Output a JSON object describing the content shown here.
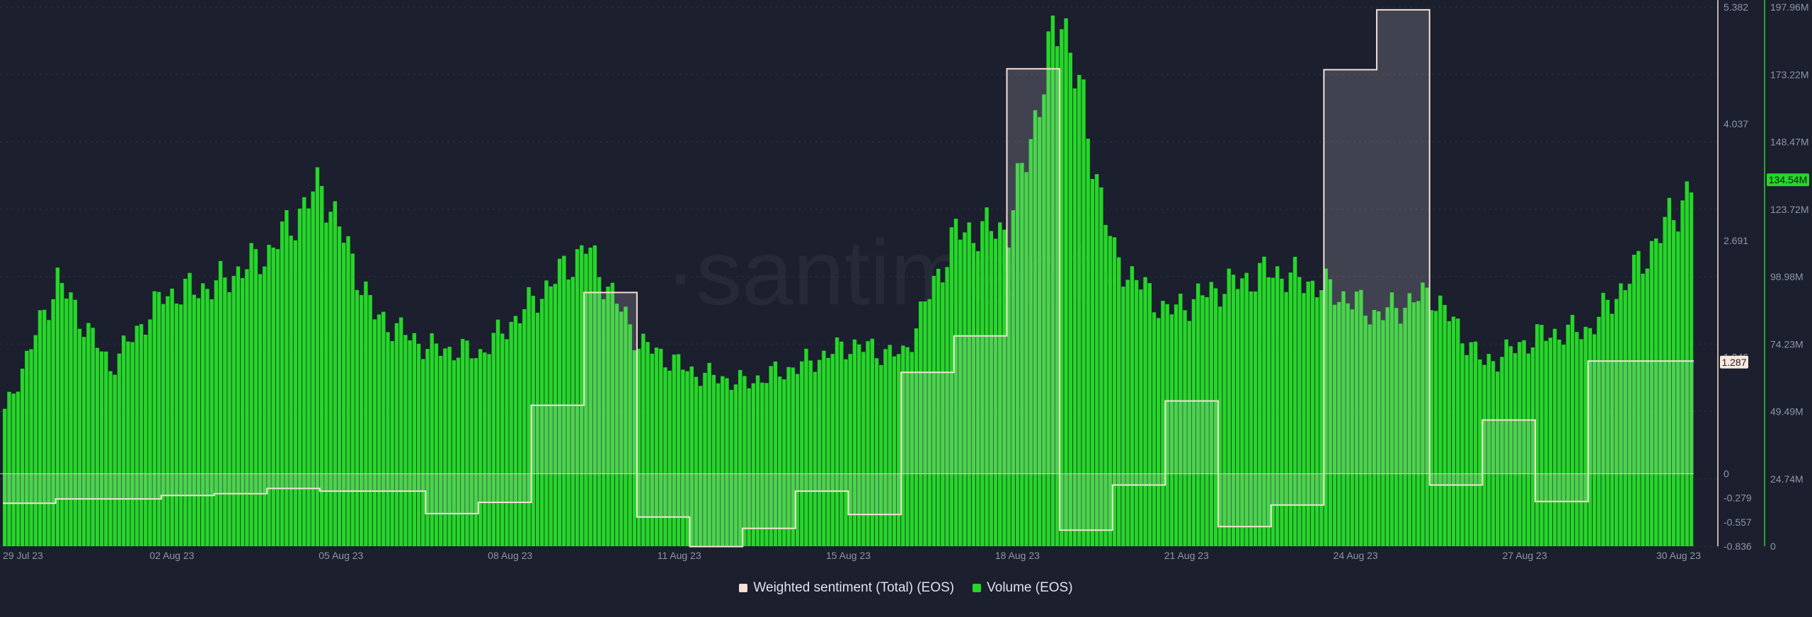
{
  "watermark": "·santiment·",
  "legend": {
    "sentiment_label": "Weighted sentiment (Total) (EOS)",
    "volume_label": "Volume (EOS)"
  },
  "colors": {
    "background": "#1b1f2e",
    "volume": "#26d629",
    "sentiment": "#f6dfd6",
    "badge_volume": "#26d629",
    "badge_sentiment": "#fbe8dc"
  },
  "current_values": {
    "volume_badge": "134.54M",
    "sentiment_badge": "1.287"
  },
  "chart_data": {
    "type": "bar",
    "x_ticks": [
      "29 Jul 23",
      "02 Aug 23",
      "05 Aug 23",
      "08 Aug 23",
      "11 Aug 23",
      "15 Aug 23",
      "18 Aug 23",
      "21 Aug 23",
      "24 Aug 23",
      "27 Aug 23",
      "30 Aug 23"
    ],
    "right_axis_volume": {
      "ticks": [
        "197.96M",
        "173.22M",
        "148.47M",
        "123.72M",
        "98.98M",
        "74.23M",
        "49.49M",
        "24.74M",
        "0"
      ],
      "ylim": [
        0,
        197960000
      ]
    },
    "left_axis_sentiment": {
      "ticks": [
        "5.382",
        "4.037",
        "2.691",
        "1.346",
        "0",
        "-0.279",
        "-0.557",
        "-0.836"
      ],
      "ylim": [
        -0.836,
        5.382
      ]
    },
    "series": [
      {
        "name": "Volume (EOS)",
        "type": "bar",
        "x": [
          "29 Jul 23",
          "30 Jul 23",
          "31 Jul 23",
          "01 Aug 23",
          "02 Aug 23",
          "03 Aug 23",
          "04 Aug 23",
          "05 Aug 23",
          "06 Aug 23",
          "07 Aug 23",
          "08 Aug 23",
          "09 Aug 23",
          "10 Aug 23",
          "11 Aug 23",
          "12 Aug 23",
          "13 Aug 23",
          "14 Aug 23",
          "15 Aug 23",
          "16 Aug 23",
          "17 Aug 23",
          "18 Aug 23",
          "19 Aug 23",
          "20 Aug 23",
          "21 Aug 23",
          "22 Aug 23",
          "23 Aug 23",
          "24 Aug 23",
          "25 Aug 23",
          "26 Aug 23",
          "27 Aug 23",
          "28 Aug 23",
          "29 Aug 23",
          "30 Aug 23"
        ],
        "values": [
          49000000,
          98000000,
          66000000,
          92000000,
          96000000,
          108000000,
          133000000,
          85000000,
          73000000,
          71000000,
          90000000,
          110000000,
          75000000,
          64000000,
          60000000,
          66000000,
          74000000,
          70000000,
          115000000,
          117000000,
          198000000,
          106000000,
          86000000,
          95000000,
          101000000,
          95000000,
          85000000,
          93000000,
          67000000,
          77000000,
          80000000,
          105000000,
          134540000
        ]
      },
      {
        "name": "Weighted sentiment (Total) (EOS)",
        "type": "step-area",
        "x": [
          "29 Jul 23",
          "30 Jul 23",
          "31 Jul 23",
          "01 Aug 23",
          "02 Aug 23",
          "03 Aug 23",
          "04 Aug 23",
          "05 Aug 23",
          "06 Aug 23",
          "07 Aug 23",
          "08 Aug 23",
          "09 Aug 23",
          "10 Aug 23",
          "11 Aug 23",
          "12 Aug 23",
          "13 Aug 23",
          "14 Aug 23",
          "15 Aug 23",
          "16 Aug 23",
          "17 Aug 23",
          "18 Aug 23",
          "19 Aug 23",
          "20 Aug 23",
          "21 Aug 23",
          "22 Aug 23",
          "23 Aug 23",
          "24 Aug 23",
          "25 Aug 23",
          "26 Aug 23",
          "27 Aug 23",
          "28 Aug 23",
          "29 Aug 23"
        ],
        "values": [
          -0.34,
          -0.29,
          -0.29,
          -0.25,
          -0.23,
          -0.17,
          -0.2,
          -0.2,
          -0.46,
          -0.33,
          0.79,
          2.09,
          -0.5,
          -0.84,
          -0.63,
          -0.2,
          -0.47,
          1.17,
          1.59,
          4.67,
          -0.65,
          -0.13,
          0.84,
          -0.61,
          -0.36,
          4.66,
          5.35,
          -0.13,
          0.62,
          -0.32,
          1.3,
          1.3
        ]
      }
    ],
    "grid": true,
    "legend_position": "bottom-center"
  }
}
